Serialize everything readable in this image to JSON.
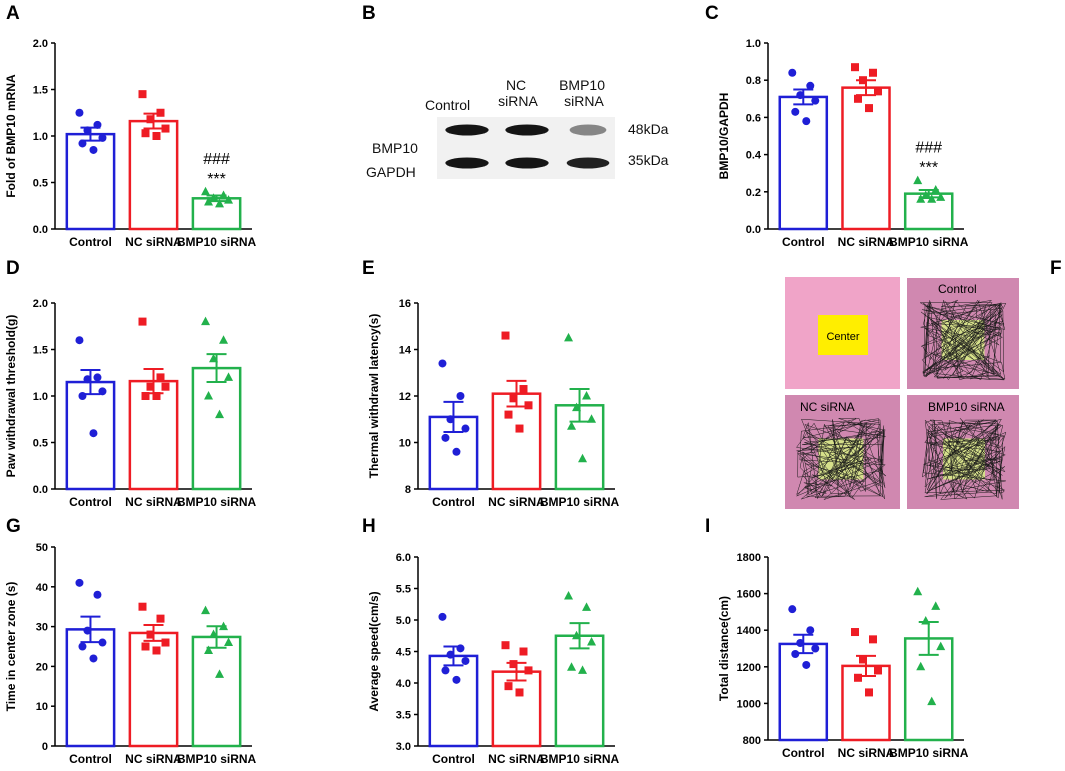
{
  "figure": {
    "panel_letters": [
      "A",
      "B",
      "C",
      "D",
      "E",
      "F",
      "G",
      "H",
      "I"
    ],
    "colors": {
      "control": "#1f1fd6",
      "nc": "#ee1c24",
      "bmp10": "#22b14c"
    }
  },
  "chart_data": [
    {
      "panel": "A",
      "type": "bar",
      "ylabel": "Fold of BMP10 mRNA",
      "categories": [
        "Control",
        "NC siRNA",
        "BMP10 siRNA"
      ],
      "values": [
        1.02,
        1.16,
        0.33
      ],
      "sem": [
        0.07,
        0.08,
        0.03
      ],
      "ylim": [
        0,
        2.0
      ],
      "yticks": [
        "0.0",
        "0.5",
        "1.0",
        "1.5",
        "2.0"
      ],
      "points": [
        [
          1.25,
          1.12,
          1.06,
          0.98,
          0.92,
          0.85
        ],
        [
          1.45,
          1.25,
          1.18,
          1.08,
          1.03,
          1.0
        ],
        [
          0.4,
          0.36,
          0.33,
          0.31,
          0.29,
          0.27
        ]
      ],
      "annotations": [
        "###",
        "***"
      ]
    },
    {
      "panel": "C",
      "type": "bar",
      "ylabel": "BMP10/GAPDH",
      "categories": [
        "Control",
        "NC siRNA",
        "BMP10 siRNA"
      ],
      "values": [
        0.71,
        0.76,
        0.19
      ],
      "sem": [
        0.04,
        0.04,
        0.02
      ],
      "ylim": [
        0,
        1.0
      ],
      "yticks": [
        "0.0",
        "0.2",
        "0.4",
        "0.6",
        "0.8",
        "1.0"
      ],
      "points": [
        [
          0.84,
          0.77,
          0.72,
          0.69,
          0.63,
          0.58
        ],
        [
          0.87,
          0.84,
          0.8,
          0.74,
          0.7,
          0.65
        ],
        [
          0.26,
          0.21,
          0.18,
          0.17,
          0.16,
          0.16
        ]
      ],
      "annotations": [
        "###",
        "***"
      ]
    },
    {
      "panel": "D",
      "type": "bar",
      "ylabel": "Paw withdrawal threshold(g)",
      "categories": [
        "Control",
        "NC siRNA",
        "BMP10 siRNA"
      ],
      "values": [
        1.15,
        1.16,
        1.3
      ],
      "sem": [
        0.13,
        0.13,
        0.15
      ],
      "ylim": [
        0,
        2.0
      ],
      "yticks": [
        "0.0",
        "0.5",
        "1.0",
        "1.5",
        "2.0"
      ],
      "points": [
        [
          1.6,
          1.2,
          1.18,
          1.05,
          1.0,
          0.6
        ],
        [
          1.8,
          1.2,
          1.1,
          1.1,
          1.0,
          1.0
        ],
        [
          1.8,
          1.6,
          1.4,
          1.2,
          1.0,
          0.8
        ]
      ]
    },
    {
      "panel": "E",
      "type": "bar",
      "ylabel": "Thermal withdrawl latency(s)",
      "categories": [
        "Control",
        "NC siRNA",
        "BMP10 siRNA"
      ],
      "values": [
        11.1,
        12.1,
        11.6
      ],
      "sem": [
        0.65,
        0.55,
        0.7
      ],
      "ylim": [
        8,
        16
      ],
      "yticks": [
        "8",
        "10",
        "12",
        "14",
        "16"
      ],
      "points": [
        [
          13.4,
          12.0,
          11.0,
          10.6,
          10.2,
          9.6
        ],
        [
          14.6,
          12.3,
          11.9,
          11.6,
          11.2,
          10.6
        ],
        [
          14.5,
          12.0,
          11.5,
          11.0,
          10.7,
          9.3
        ]
      ]
    },
    {
      "panel": "G",
      "type": "bar",
      "ylabel": "Time in center zone (s)",
      "categories": [
        "Control",
        "NC siRNA",
        "BMP10 siRNA"
      ],
      "values": [
        29.3,
        28.4,
        27.4
      ],
      "sem": [
        3.2,
        2.0,
        2.7
      ],
      "ylim": [
        0,
        50
      ],
      "yticks": [
        "0",
        "10",
        "20",
        "30",
        "40",
        "50"
      ],
      "points": [
        [
          41,
          38,
          29,
          26,
          25,
          22
        ],
        [
          35,
          32,
          28,
          26,
          25,
          24
        ],
        [
          34,
          30,
          28,
          26,
          24,
          18
        ]
      ]
    },
    {
      "panel": "H",
      "type": "bar",
      "ylabel": "Average speed(cm/s)",
      "categories": [
        "Control",
        "NC siRNA",
        "BMP10 siRNA"
      ],
      "values": [
        4.43,
        4.18,
        4.75
      ],
      "sem": [
        0.15,
        0.14,
        0.2
      ],
      "ylim": [
        3.0,
        6.0
      ],
      "yticks": [
        "3.0",
        "3.5",
        "4.0",
        "4.5",
        "5.0",
        "5.5",
        "6.0"
      ],
      "points": [
        [
          5.05,
          4.55,
          4.45,
          4.35,
          4.2,
          4.05
        ],
        [
          4.6,
          4.5,
          4.3,
          4.2,
          3.95,
          3.85
        ],
        [
          5.38,
          5.2,
          4.75,
          4.65,
          4.25,
          4.2
        ]
      ]
    },
    {
      "panel": "I",
      "type": "bar",
      "ylabel": "Total distance(cm)",
      "categories": [
        "Control",
        "NC siRNA",
        "BMP10 siRNA"
      ],
      "values": [
        1325,
        1205,
        1355
      ],
      "sem": [
        50,
        55,
        90
      ],
      "ylim": [
        800,
        1800
      ],
      "yticks": [
        "800",
        "1000",
        "1200",
        "1400",
        "1600",
        "1800"
      ],
      "points": [
        [
          1515,
          1400,
          1330,
          1300,
          1270,
          1210
        ],
        [
          1390,
          1350,
          1240,
          1180,
          1140,
          1060
        ],
        [
          1610,
          1530,
          1450,
          1310,
          1200,
          1010
        ]
      ]
    }
  ],
  "blot": {
    "lanes": [
      "Control",
      "NC\nsiRNA",
      "BMP10\nsiRNA"
    ],
    "rows": [
      {
        "label": "BMP10",
        "size": "48kDa",
        "intensity": [
          0.95,
          0.95,
          0.45
        ]
      },
      {
        "label": "GAPDH",
        "size": "35kDa",
        "intensity": [
          0.95,
          0.95,
          0.9
        ]
      }
    ]
  },
  "open_field": {
    "schematic_label": "Center",
    "groups": [
      "Control",
      "NC siRNA",
      "BMP10 siRNA"
    ]
  }
}
